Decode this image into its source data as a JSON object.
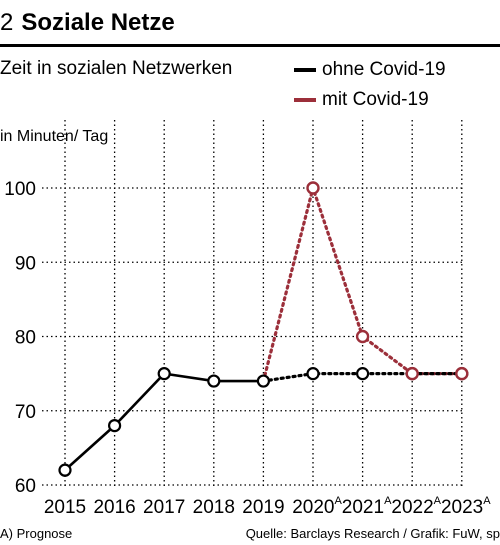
{
  "header": {
    "number": "2",
    "title": "Soziale Netze",
    "subtitle": "Zeit in sozialen Netzwerken"
  },
  "legend": [
    {
      "label": "ohne Covid-19",
      "color": "#000000"
    },
    {
      "label": "mit Covid-19",
      "color": "#9c2f3a"
    }
  ],
  "footer": {
    "note": "A) Prognose",
    "source": "Quelle: Barclays Research / Grafik: FuW, sp"
  },
  "chart_data": {
    "type": "line",
    "title": "Soziale Netze",
    "subtitle": "Zeit in sozialen Netzwerken",
    "ylabel": "in Minuten/ Tag",
    "xlabel": "",
    "categories": [
      "2015",
      "2016",
      "2017",
      "2018",
      "2019",
      "2020A",
      "2021A",
      "2022A",
      "2023A"
    ],
    "ylim": [
      60,
      100
    ],
    "yticks": [
      60,
      70,
      80,
      90,
      100
    ],
    "grid": "dotted vertical and horizontal",
    "series": [
      {
        "name": "ohne Covid-19",
        "color": "#000000",
        "values": [
          62,
          68,
          75,
          74,
          74,
          75,
          75,
          75,
          75
        ],
        "solid_until_index": 4
      },
      {
        "name": "mit Covid-19",
        "color": "#9c2f3a",
        "values": [
          null,
          null,
          null,
          null,
          74,
          100,
          80,
          75,
          75
        ],
        "style": "dotted"
      }
    ]
  }
}
